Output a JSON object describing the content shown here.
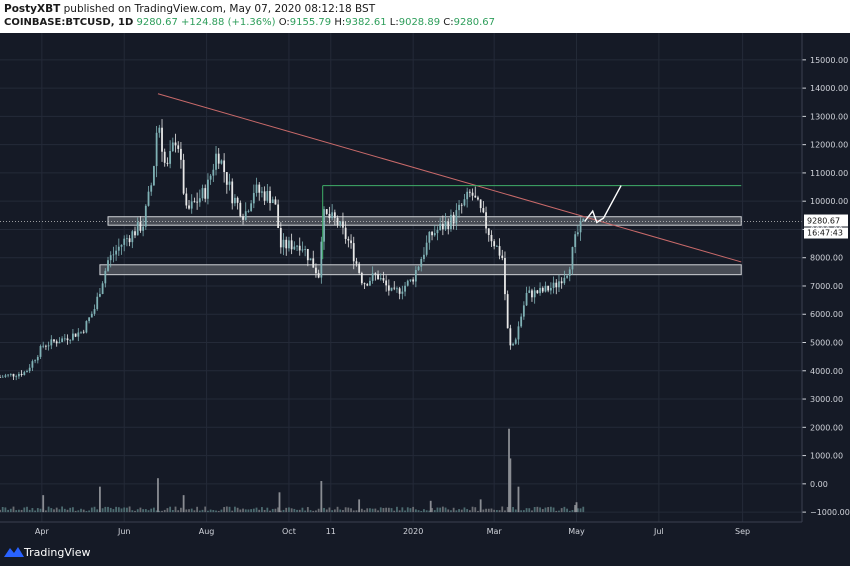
{
  "header": {
    "author": "PostyXBT",
    "published": "published on TradingView.com, May 07, 2020 08:12:18 BST",
    "symbol": "COINBASE:BTCUSD, 1D",
    "price": "9280.67",
    "change": "+124.88 (+1.36%)",
    "o_label": "O:",
    "o_value": "9155.79",
    "h_label": "H:",
    "h_value": "9382.61",
    "l_label": "L:",
    "l_value": "9028.89",
    "c_label": "C:",
    "c_value": "9280.67"
  },
  "footer": {
    "brand": "TradingView",
    "logo_icon": "tradingview-logo-icon"
  },
  "colors": {
    "background": "#151a26",
    "candle_up": "#7fb1b5",
    "candle_down": "#e8e8e8",
    "trendline": "#c96a6a",
    "resistance": "#3fae68",
    "zone_fill": "#5a5e66",
    "grid": "#242a38",
    "axis_text": "#d0d3da"
  },
  "chart_data": {
    "type": "candlestick",
    "title": "",
    "price_axis": {
      "ticks": [
        15000,
        14000,
        13000,
        12000,
        11000,
        10000,
        9000,
        8000,
        7000,
        6000,
        5000,
        4000,
        3000,
        2000,
        1000,
        0,
        -1000
      ],
      "tick_labels": [
        "15000.00",
        "14000.00",
        "13000.00",
        "12000.00",
        "11000.00",
        "10000.00",
        "9000.00",
        "8000.00",
        "7000.00",
        "6000.00",
        "5000.00",
        "4000.00",
        "3000.00",
        "2000.00",
        "1000.00",
        "0.00",
        "−1000.00"
      ],
      "range": [
        -1350,
        15950
      ]
    },
    "time_axis": {
      "ticks": [
        "2019-04-01",
        "2019-06-01",
        "2019-08-01",
        "2019-10-01",
        "2019-11-01",
        "2020-01-01",
        "2020-03-01",
        "2020-05-01",
        "2020-07-01",
        "2020-09-01"
      ],
      "tick_labels": [
        "Apr",
        "Jun",
        "Aug",
        "Oct",
        "11",
        "2020",
        "Mar",
        "May",
        "Jul",
        "Sep"
      ],
      "range": [
        "2019-03-01",
        "2020-10-15"
      ]
    },
    "last_price": {
      "value": 9280.67,
      "label": "9280.67",
      "countdown": "16:47:43"
    },
    "price_path": [
      [
        "2019-03-01",
        3780
      ],
      [
        "2019-03-20",
        3950
      ],
      [
        "2019-04-02",
        4900
      ],
      [
        "2019-04-15",
        5100
      ],
      [
        "2019-05-01",
        5400
      ],
      [
        "2019-05-10",
        6200
      ],
      [
        "2019-05-20",
        7900
      ],
      [
        "2019-06-01",
        8600
      ],
      [
        "2019-06-15",
        9200
      ],
      [
        "2019-06-22",
        10800
      ],
      [
        "2019-06-26",
        13000
      ],
      [
        "2019-07-02",
        11000
      ],
      [
        "2019-07-10",
        12400
      ],
      [
        "2019-07-17",
        9600
      ],
      [
        "2019-08-01",
        10400
      ],
      [
        "2019-08-09",
        11800
      ],
      [
        "2019-08-20",
        10200
      ],
      [
        "2019-08-29",
        9500
      ],
      [
        "2019-09-05",
        10400
      ],
      [
        "2019-09-20",
        10100
      ],
      [
        "2019-09-25",
        8400
      ],
      [
        "2019-10-10",
        8500
      ],
      [
        "2019-10-23",
        7400
      ],
      [
        "2019-10-26",
        9500
      ],
      [
        "2019-11-05",
        9300
      ],
      [
        "2019-11-15",
        8500
      ],
      [
        "2019-11-25",
        7100
      ],
      [
        "2019-12-05",
        7400
      ],
      [
        "2019-12-17",
        6700
      ],
      [
        "2019-12-31",
        7200
      ],
      [
        "2020-01-14",
        8800
      ],
      [
        "2020-01-31",
        9400
      ],
      [
        "2020-02-13",
        10300
      ],
      [
        "2020-02-20",
        9600
      ],
      [
        "2020-02-27",
        8800
      ],
      [
        "2020-03-07",
        8000
      ],
      [
        "2020-03-12",
        4800
      ],
      [
        "2020-03-16",
        5000
      ],
      [
        "2020-03-25",
        6700
      ],
      [
        "2020-04-05",
        6800
      ],
      [
        "2020-04-15",
        7000
      ],
      [
        "2020-04-25",
        7600
      ],
      [
        "2020-05-01",
        8800
      ],
      [
        "2020-05-07",
        9280
      ]
    ],
    "volume_spikes": [
      [
        "2019-04-02",
        600
      ],
      [
        "2019-05-14",
        900
      ],
      [
        "2019-06-26",
        1200
      ],
      [
        "2019-07-15",
        600
      ],
      [
        "2019-09-24",
        700
      ],
      [
        "2019-10-25",
        1100
      ],
      [
        "2019-11-22",
        450
      ],
      [
        "2020-01-14",
        400
      ],
      [
        "2020-02-20",
        450
      ],
      [
        "2020-03-12",
        2950
      ],
      [
        "2020-03-13",
        1900
      ],
      [
        "2020-03-19",
        900
      ],
      [
        "2020-04-30",
        250
      ],
      [
        "2020-05-01",
        350
      ]
    ],
    "annotations": [
      {
        "type": "trendline",
        "points": [
          [
            "2019-06-26",
            13800
          ],
          [
            "2020-08-31",
            7850
          ]
        ]
      },
      {
        "type": "horizontal",
        "value": 10550,
        "from": "2019-10-26",
        "to": "2020-08-31"
      },
      {
        "type": "zone",
        "from_value": 9150,
        "to_value": 9450,
        "from": "2019-05-20",
        "to": "2020-08-31"
      },
      {
        "type": "zone",
        "from_value": 7400,
        "to_value": 7750,
        "from": "2019-05-14",
        "to": "2020-08-31"
      },
      {
        "type": "projection",
        "points": [
          [
            "2020-05-07",
            9280
          ],
          [
            "2020-05-13",
            9650
          ],
          [
            "2020-05-16",
            9250
          ],
          [
            "2020-05-21",
            9400
          ],
          [
            "2020-06-03",
            10550
          ]
        ]
      }
    ]
  }
}
